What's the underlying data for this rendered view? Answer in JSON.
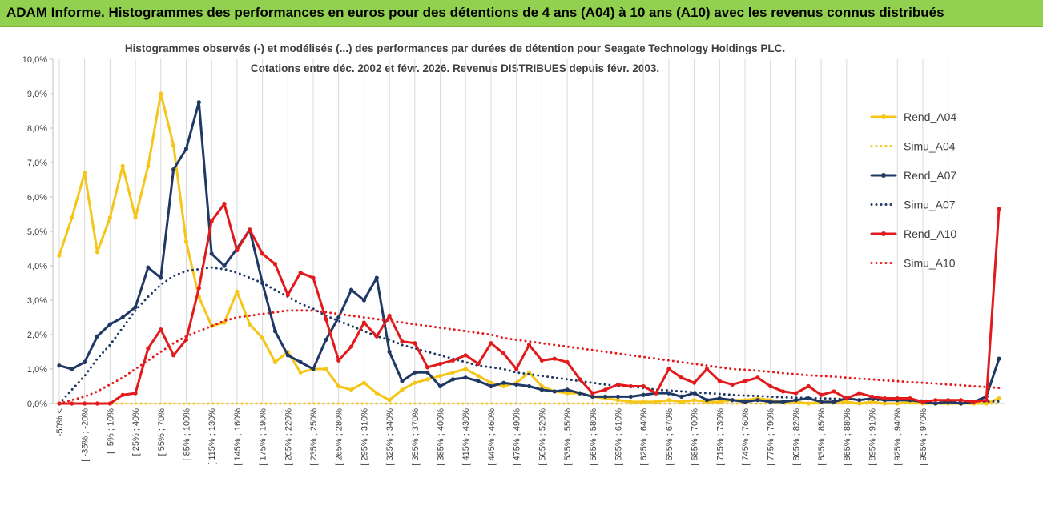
{
  "banner": {
    "title": "ADAM Informe. Histogrammes des performances en euros pour des détentions de 4 ans (A04) à 10 ans (A10) avec les revenus connus distribués",
    "background": "#92d050"
  },
  "chart_data": {
    "type": "line",
    "title_line1": "Histogrammes observés (-) et modélisés (...) des performances par durées de détention pour Seagate Technology Holdings PLC.",
    "title_line2": "Cotations entre déc. 2002 et févr. 2026. Revenus DISTRIBUES depuis févr. 2003.",
    "xlabel": "",
    "ylabel": "",
    "ylim": [
      0,
      10
    ],
    "y_ticks": [
      "0,0%",
      "1,0%",
      "2,0%",
      "3,0%",
      "4,0%",
      "5,0%",
      "6,0%",
      "7,0%",
      "8,0%",
      "9,0%",
      "10,0%"
    ],
    "grid": "vertical",
    "legend_position": "right",
    "x_tick_labels": [
      "-50% <",
      "[ -35% ; -20%",
      "[ -5% ; 10%",
      "[ 25% ; 40%",
      "[ 55% ; 70%",
      "[ 85% ; 100%",
      "[ 115% ; 130%",
      "[ 145% ; 160%",
      "[ 175% ; 190%",
      "[ 205% ; 220%",
      "[ 235% ; 250%",
      "[ 265% ; 280%",
      "[ 295% ; 310%",
      "[ 325% ; 340%",
      "[ 355% ; 370%",
      "[ 385% ; 400%",
      "[ 415% ; 430%",
      "[ 445% ; 460%",
      "[ 475% ; 490%",
      "[ 505% ; 520%",
      "[ 535% ; 550%",
      "[ 565% ; 580%",
      "[ 595% ; 610%",
      "[ 625% ; 640%",
      "[ 655% ; 670%",
      "[ 685% ; 700%",
      "[ 715% ; 730%",
      "[ 745% ; 760%",
      "[ 775% ; 790%",
      "[ 805% ; 820%",
      "[ 835% ; 850%",
      "[ 865% ; 880%",
      "[ 895% ; 910%",
      "[ 925% ; 940%",
      "[ 955% ; 970%"
    ],
    "series": [
      {
        "name": "Rend_A04",
        "color": "#f5c518",
        "style": "solid",
        "marker": true,
        "values": [
          4.3,
          5.4,
          6.7,
          4.4,
          5.4,
          6.9,
          5.4,
          6.9,
          9.0,
          7.5,
          4.7,
          3.1,
          2.25,
          2.35,
          3.25,
          2.3,
          1.9,
          1.2,
          1.5,
          0.9,
          1.0,
          1.0,
          0.5,
          0.4,
          0.6,
          0.3,
          0.1,
          0.4,
          0.6,
          0.7,
          0.8,
          0.9,
          1.0,
          0.8,
          0.6,
          0.5,
          0.6,
          0.9,
          0.5,
          0.35,
          0.3,
          0.3,
          0.2,
          0.15,
          0.1,
          0.05,
          0.05,
          0.05,
          0.1,
          0.05,
          0.1,
          0.05,
          0.05,
          0.1,
          0.1,
          0.15,
          0.1,
          0.05,
          0.05,
          0.0,
          0.05,
          0.05,
          0.05,
          0.0,
          0.05,
          0.0,
          0.0,
          0.05,
          0.0,
          0.0,
          0.0,
          0.0,
          0.0,
          0.0,
          0.15
        ]
      },
      {
        "name": "Simu_A04",
        "color": "#f5c518",
        "style": "dotted",
        "marker": false,
        "values": [
          0,
          0,
          0,
          0,
          0,
          0,
          0,
          0,
          0,
          0,
          0,
          0,
          0,
          0,
          0,
          0,
          0,
          0,
          0,
          0,
          0,
          0,
          0,
          0,
          0,
          0,
          0,
          0,
          0,
          0,
          0,
          0,
          0,
          0,
          0,
          0,
          0,
          0,
          0,
          0,
          0,
          0,
          0,
          0,
          0,
          0,
          0,
          0,
          0,
          0,
          0,
          0,
          0,
          0,
          0,
          0,
          0,
          0,
          0,
          0,
          0,
          0,
          0,
          0,
          0,
          0,
          0,
          0,
          0,
          0,
          0,
          0,
          0,
          0,
          0
        ]
      },
      {
        "name": "Rend_A07",
        "color": "#1f3864",
        "style": "solid",
        "marker": true,
        "values": [
          1.1,
          1.0,
          1.2,
          1.95,
          2.3,
          2.5,
          2.8,
          3.95,
          3.65,
          6.8,
          7.4,
          8.75,
          4.35,
          4.0,
          4.5,
          5.05,
          3.5,
          2.1,
          1.4,
          1.2,
          1.0,
          1.85,
          2.5,
          3.3,
          3.0,
          3.65,
          1.5,
          0.65,
          0.9,
          0.9,
          0.5,
          0.7,
          0.75,
          0.65,
          0.5,
          0.6,
          0.55,
          0.5,
          0.4,
          0.35,
          0.4,
          0.3,
          0.2,
          0.2,
          0.2,
          0.2,
          0.25,
          0.3,
          0.3,
          0.2,
          0.3,
          0.1,
          0.15,
          0.1,
          0.05,
          0.1,
          0.05,
          0.05,
          0.1,
          0.15,
          0.05,
          0.05,
          0.15,
          0.1,
          0.15,
          0.1,
          0.1,
          0.1,
          0.05,
          0.0,
          0.05,
          0.0,
          0.05,
          0.2,
          1.3
        ]
      },
      {
        "name": "Simu_A07",
        "color": "#1f3864",
        "style": "dotted",
        "marker": false,
        "values": [
          0.0,
          0.4,
          0.8,
          1.3,
          1.7,
          2.2,
          2.7,
          3.1,
          3.45,
          3.7,
          3.85,
          3.9,
          3.95,
          3.9,
          3.8,
          3.65,
          3.5,
          3.3,
          3.1,
          2.9,
          2.75,
          2.55,
          2.4,
          2.25,
          2.1,
          1.95,
          1.85,
          1.7,
          1.6,
          1.5,
          1.4,
          1.3,
          1.2,
          1.1,
          1.05,
          1.0,
          0.9,
          0.85,
          0.8,
          0.75,
          0.7,
          0.65,
          0.6,
          0.55,
          0.5,
          0.5,
          0.45,
          0.4,
          0.38,
          0.35,
          0.33,
          0.3,
          0.28,
          0.25,
          0.23,
          0.22,
          0.2,
          0.18,
          0.17,
          0.16,
          0.15,
          0.14,
          0.13,
          0.12,
          0.11,
          0.1,
          0.1,
          0.09,
          0.09,
          0.08,
          0.08,
          0.07,
          0.07,
          0.06,
          0.06
        ]
      },
      {
        "name": "Rend_A10",
        "color": "#e31a1c",
        "style": "solid",
        "marker": true,
        "values": [
          0.0,
          0.0,
          0.0,
          0.0,
          0.0,
          0.25,
          0.3,
          1.6,
          2.15,
          1.4,
          1.85,
          3.35,
          5.3,
          5.8,
          4.45,
          5.05,
          4.35,
          4.05,
          3.15,
          3.8,
          3.65,
          2.45,
          1.25,
          1.65,
          2.35,
          1.95,
          2.55,
          1.8,
          1.75,
          1.05,
          1.15,
          1.25,
          1.4,
          1.15,
          1.75,
          1.45,
          1.0,
          1.7,
          1.25,
          1.3,
          1.2,
          0.7,
          0.3,
          0.4,
          0.55,
          0.5,
          0.5,
          0.3,
          1.0,
          0.75,
          0.6,
          1.0,
          0.65,
          0.55,
          0.65,
          0.75,
          0.5,
          0.35,
          0.3,
          0.5,
          0.25,
          0.35,
          0.15,
          0.3,
          0.2,
          0.15,
          0.15,
          0.15,
          0.05,
          0.1,
          0.1,
          0.1,
          0.05,
          0.1,
          5.65
        ]
      },
      {
        "name": "Simu_A10",
        "color": "#e31a1c",
        "style": "dotted",
        "marker": false,
        "values": [
          0.0,
          0.1,
          0.2,
          0.35,
          0.55,
          0.75,
          1.0,
          1.25,
          1.5,
          1.75,
          1.95,
          2.1,
          2.25,
          2.4,
          2.5,
          2.55,
          2.6,
          2.65,
          2.7,
          2.7,
          2.7,
          2.65,
          2.6,
          2.55,
          2.5,
          2.45,
          2.4,
          2.35,
          2.3,
          2.25,
          2.2,
          2.15,
          2.1,
          2.05,
          2.0,
          1.9,
          1.85,
          1.8,
          1.75,
          1.7,
          1.65,
          1.6,
          1.55,
          1.5,
          1.45,
          1.4,
          1.35,
          1.3,
          1.25,
          1.2,
          1.15,
          1.1,
          1.05,
          1.0,
          0.98,
          0.95,
          0.92,
          0.88,
          0.85,
          0.82,
          0.8,
          0.78,
          0.75,
          0.72,
          0.7,
          0.67,
          0.65,
          0.62,
          0.6,
          0.58,
          0.55,
          0.53,
          0.5,
          0.48,
          0.45
        ]
      }
    ]
  }
}
